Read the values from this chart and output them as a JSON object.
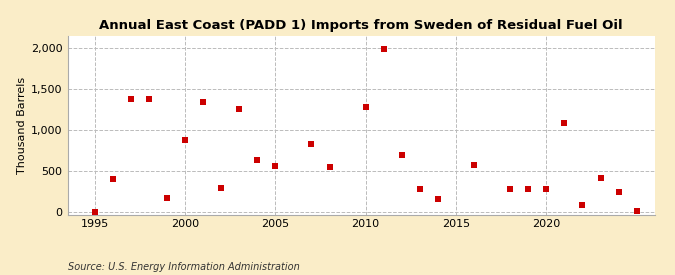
{
  "title": "Annual East Coast (PADD 1) Imports from Sweden of Residual Fuel Oil",
  "ylabel": "Thousand Barrels",
  "source": "Source: U.S. Energy Information Administration",
  "data": [
    {
      "year": 1995,
      "value": 0
    },
    {
      "year": 1996,
      "value": 400
    },
    {
      "year": 1997,
      "value": 1375
    },
    {
      "year": 1998,
      "value": 1375
    },
    {
      "year": 1999,
      "value": 175
    },
    {
      "year": 2000,
      "value": 875
    },
    {
      "year": 2001,
      "value": 1340
    },
    {
      "year": 2002,
      "value": 290
    },
    {
      "year": 2003,
      "value": 1260
    },
    {
      "year": 2004,
      "value": 630
    },
    {
      "year": 2005,
      "value": 560
    },
    {
      "year": 2007,
      "value": 830
    },
    {
      "year": 2008,
      "value": 545
    },
    {
      "year": 2010,
      "value": 1275
    },
    {
      "year": 2011,
      "value": 1990
    },
    {
      "year": 2012,
      "value": 690
    },
    {
      "year": 2013,
      "value": 275
    },
    {
      "year": 2014,
      "value": 155
    },
    {
      "year": 2016,
      "value": 570
    },
    {
      "year": 2018,
      "value": 280
    },
    {
      "year": 2019,
      "value": 280
    },
    {
      "year": 2020,
      "value": 280
    },
    {
      "year": 2021,
      "value": 1090
    },
    {
      "year": 2022,
      "value": 90
    },
    {
      "year": 2023,
      "value": 410
    },
    {
      "year": 2024,
      "value": 240
    },
    {
      "year": 2025,
      "value": 10
    }
  ],
  "xlim": [
    1993.5,
    2026
  ],
  "ylim": [
    -30,
    2150
  ],
  "yticks": [
    0,
    500,
    1000,
    1500,
    2000
  ],
  "xticks": [
    1995,
    2000,
    2005,
    2010,
    2015,
    2020
  ],
  "marker_color": "#cc0000",
  "marker_size": 18,
  "background_color": "#faedc8",
  "plot_background": "#ffffff",
  "grid_color": "#bbbbbb",
  "title_fontsize": 9.5,
  "label_fontsize": 8,
  "tick_fontsize": 8,
  "source_fontsize": 7
}
